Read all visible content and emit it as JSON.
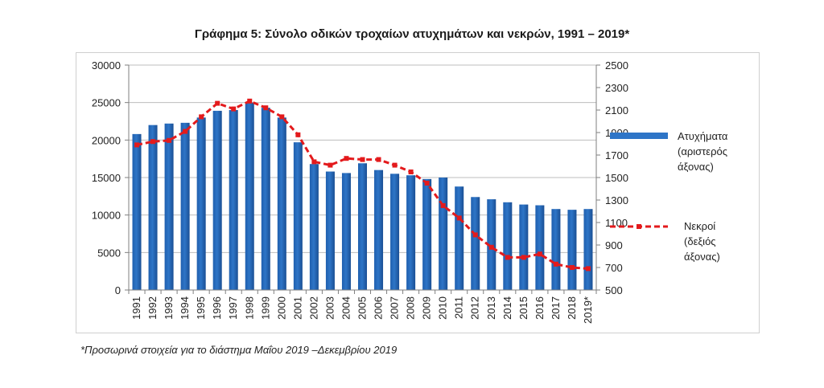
{
  "title": "Γράφημα 5: Σύνολο οδικών τροχαίων ατυχημάτων και νεκρών, 1991 – 2019*",
  "footnote": "*Προσωρινά στοιχεία για το διάστημα Μαΐου 2019 –Δεκεμβρίου 2019",
  "colors": {
    "bars": "#2e75c7",
    "line": "#e31a1c",
    "grid": "#bdbdbd"
  },
  "chart_data": {
    "type": "bar+line",
    "categories": [
      "1991",
      "1992",
      "1993",
      "1994",
      "1995",
      "1996",
      "1997",
      "1998",
      "1999",
      "2000",
      "2001",
      "2002",
      "2003",
      "2004",
      "2005",
      "2006",
      "2007",
      "2008",
      "2009",
      "2010",
      "2011",
      "2012",
      "2013",
      "2014",
      "2015",
      "2016",
      "2017",
      "2018",
      "2019*"
    ],
    "series": [
      {
        "name": "Ατυχήματα (αριστερός άξονας)",
        "legend_lines": [
          "Ατυχήματα",
          "(αριστερός",
          "άξονας)"
        ],
        "type": "bar",
        "axis": "left",
        "values": [
          20800,
          22000,
          22200,
          22300,
          23000,
          23900,
          24000,
          25000,
          24300,
          23000,
          19700,
          16800,
          15800,
          15600,
          16900,
          16000,
          15500,
          15300,
          14800,
          15000,
          13800,
          12400,
          12100,
          11700,
          11400,
          11300,
          10800,
          10700,
          10800
        ]
      },
      {
        "name": "Νεκροί (δεξιός άξονας)",
        "legend_lines": [
          "Νεκροί",
          "(δεξιός",
          "άξονας)"
        ],
        "type": "line",
        "axis": "right",
        "values": [
          1790,
          1820,
          1830,
          1910,
          2040,
          2160,
          2110,
          2180,
          2120,
          2040,
          1880,
          1640,
          1610,
          1670,
          1660,
          1660,
          1610,
          1550,
          1450,
          1250,
          1140,
          990,
          880,
          790,
          790,
          820,
          730,
          700,
          690
        ]
      }
    ],
    "y_left": {
      "min": 0,
      "max": 30000,
      "ticks": [
        0,
        5000,
        10000,
        15000,
        20000,
        25000,
        30000
      ]
    },
    "y_right": {
      "min": 500,
      "max": 2500,
      "ticks": [
        500,
        700,
        900,
        1100,
        1300,
        1500,
        1700,
        1900,
        2100,
        2300,
        2500
      ]
    },
    "grid": true,
    "legend_position": "right"
  }
}
